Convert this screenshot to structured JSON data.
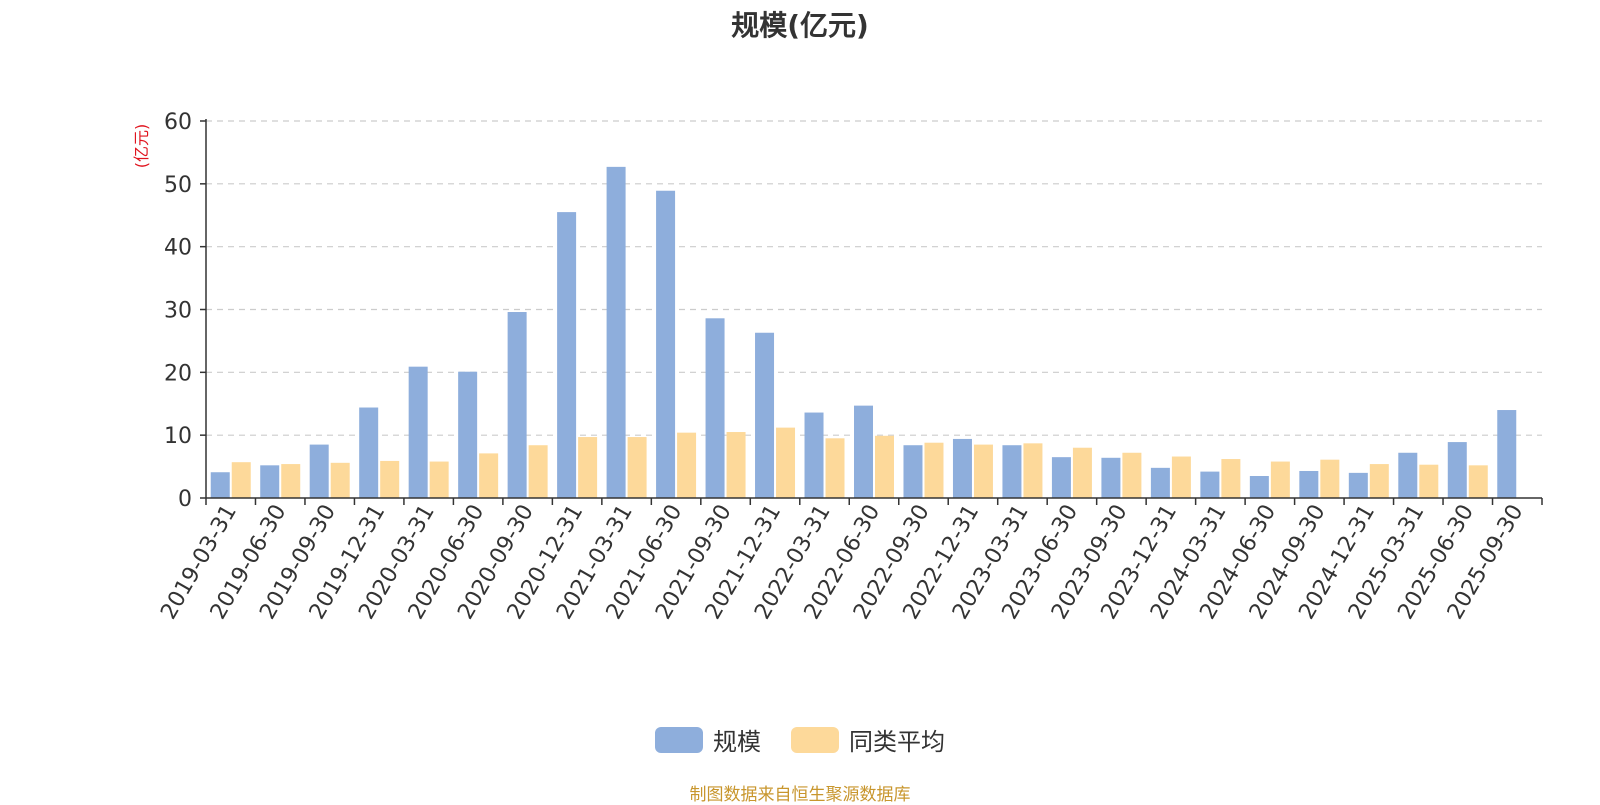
{
  "chart_data": {
    "type": "bar",
    "title": "规模(亿元)",
    "ylabel": "(亿元)",
    "ylim": [
      0,
      60
    ],
    "yticks": [
      0,
      10,
      20,
      30,
      40,
      50,
      60
    ],
    "grid": true,
    "legend_position": "bottom",
    "categories": [
      "2019-03-31",
      "2019-06-30",
      "2019-09-30",
      "2019-12-31",
      "2020-03-31",
      "2020-06-30",
      "2020-09-30",
      "2020-12-31",
      "2021-03-31",
      "2021-06-30",
      "2021-09-30",
      "2021-12-31",
      "2022-03-31",
      "2022-06-30",
      "2022-09-30",
      "2022-12-31",
      "2023-03-31",
      "2023-06-30",
      "2023-09-30",
      "2023-12-31",
      "2024-03-31",
      "2024-06-30",
      "2024-09-30",
      "2024-12-31",
      "2025-03-31",
      "2025-06-30",
      "2025-09-30"
    ],
    "series": [
      {
        "name": "规模",
        "color": "#8eaedc",
        "values": [
          4.1,
          5.2,
          8.5,
          14.4,
          20.9,
          20.1,
          29.6,
          45.5,
          52.7,
          48.9,
          28.6,
          26.3,
          13.6,
          14.7,
          8.4,
          9.4,
          8.4,
          6.5,
          6.4,
          4.8,
          4.2,
          3.5,
          4.3,
          4.0,
          7.2,
          8.9,
          14.0
        ]
      },
      {
        "name": "同类平均",
        "color": "#fdd99a",
        "values": [
          5.7,
          5.4,
          5.6,
          5.9,
          5.8,
          7.1,
          8.4,
          9.7,
          9.7,
          10.4,
          10.5,
          11.2,
          9.5,
          9.9,
          8.8,
          8.5,
          8.7,
          8.0,
          7.2,
          6.6,
          6.2,
          5.8,
          6.1,
          5.4,
          5.3,
          5.2,
          null
        ]
      }
    ]
  },
  "source_note": "制图数据来自恒生聚源数据库",
  "colors": {
    "axis": "#333333",
    "grid": "#cccccc",
    "ylabel": "#e0141e",
    "source": "#c8962d"
  }
}
